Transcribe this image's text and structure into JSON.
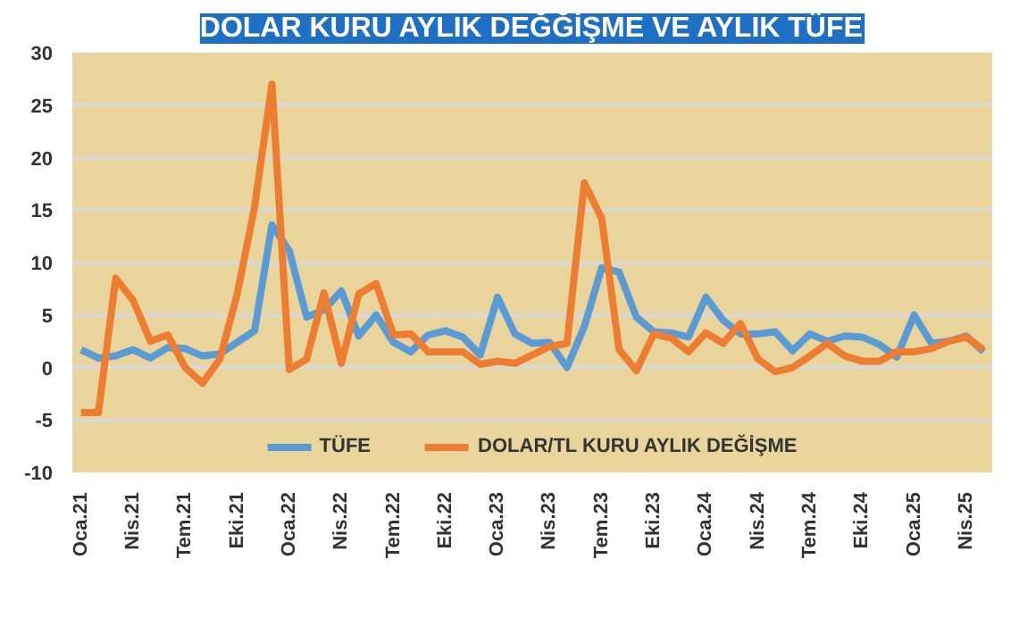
{
  "chart_data": {
    "type": "line",
    "title": "DOLAR KURU AYLIK DEĞĞİŞME VE AYLIK TÜFE",
    "categories": [
      "Oca.21",
      null,
      null,
      "Nis.21",
      null,
      null,
      "Tem.21",
      null,
      null,
      "Eki.21",
      null,
      null,
      "Oca.22",
      null,
      null,
      "Nis.22",
      null,
      null,
      "Tem.22",
      null,
      null,
      "Eki.22",
      null,
      null,
      "Oca.23",
      null,
      null,
      "Nis.23",
      null,
      null,
      "Tem.23",
      null,
      null,
      "Eki.23",
      null,
      null,
      "Oca.24",
      null,
      null,
      "Nis.24",
      null,
      null,
      "Tem.24",
      null,
      null,
      "Eki.24",
      null,
      null,
      "Oca.25",
      null,
      null,
      "Nis.25",
      null
    ],
    "series": [
      {
        "name": "TÜFE",
        "color": "#5b9bd5",
        "values": [
          1.7,
          0.9,
          1.1,
          1.7,
          0.9,
          1.9,
          1.8,
          1.1,
          1.3,
          2.4,
          3.5,
          13.6,
          11.1,
          4.8,
          5.5,
          7.3,
          3.0,
          5.0,
          2.4,
          1.5,
          3.1,
          3.5,
          2.9,
          1.2,
          6.7,
          3.2,
          2.3,
          2.4,
          0.0,
          3.9,
          9.5,
          9.1,
          4.8,
          3.4,
          3.3,
          2.9,
          6.7,
          4.5,
          3.2,
          3.2,
          3.4,
          1.6,
          3.2,
          2.5,
          3.0,
          2.9,
          2.2,
          1.0,
          5.0,
          2.3,
          2.5,
          3.0,
          1.5
        ]
      },
      {
        "name": "DOLAR/TL KURU AYLIK DEĞİŞME",
        "color": "#ed7d31",
        "values": [
          -4.3,
          -4.3,
          8.5,
          6.4,
          2.5,
          3.1,
          0.0,
          -1.5,
          0.8,
          7.0,
          15.3,
          27.0,
          -0.2,
          0.8,
          7.1,
          0.4,
          7.0,
          8.0,
          3.1,
          3.2,
          1.5,
          1.5,
          1.5,
          0.3,
          0.6,
          0.4,
          1.2,
          2.0,
          2.3,
          17.6,
          14.2,
          1.7,
          -0.3,
          3.2,
          2.8,
          1.5,
          3.3,
          2.3,
          4.2,
          0.8,
          -0.4,
          0.0,
          1.1,
          2.3,
          1.1,
          0.6,
          0.6,
          1.5,
          1.5,
          1.8,
          2.5,
          2.9,
          1.7
        ]
      }
    ],
    "ylim": [
      -10,
      30
    ],
    "yticks": [
      -10,
      -5,
      0,
      5,
      10,
      15,
      20,
      25,
      30
    ],
    "grid": "y",
    "legend": "bottom",
    "marker": "none",
    "line_style": "solid"
  }
}
